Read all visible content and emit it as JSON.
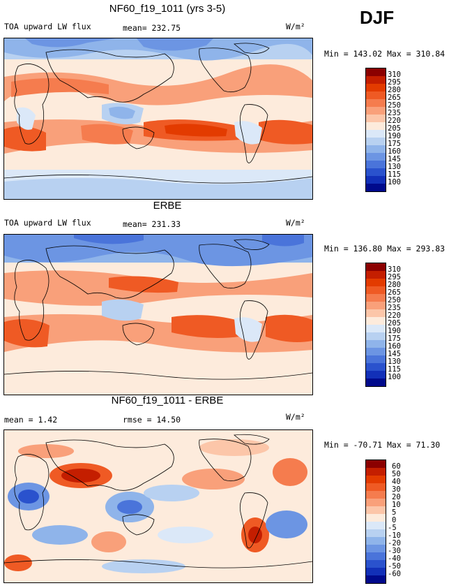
{
  "season": "DJF",
  "units": "W/m²",
  "panels": [
    {
      "title": "NF60_f19_1011 (yrs 3-5)",
      "variable": "TOA upward LW flux",
      "stat_text": "mean= 232.75",
      "minmax": "Min = 143.02 Max = 310.84",
      "colorbar": {
        "labels": [
          "310",
          "295",
          "280",
          "265",
          "250",
          "235",
          "220",
          "205",
          "190",
          "175",
          "160",
          "145",
          "130",
          "115",
          "100"
        ],
        "colors": [
          "#8b0000",
          "#c41e00",
          "#e33b00",
          "#ef5a24",
          "#f57c4e",
          "#f9a07a",
          "#fcc6a9",
          "#fdebdc",
          "#dbe8f8",
          "#b8d1f1",
          "#8fb4ea",
          "#6c95e3",
          "#4a74da",
          "#2a52cd",
          "#1230b8",
          "#000a8c"
        ]
      }
    },
    {
      "title": "ERBE",
      "variable": "TOA upward LW flux",
      "stat_text": "mean= 231.33",
      "minmax": "Min = 136.80 Max = 293.83",
      "colorbar": {
        "labels": [
          "310",
          "295",
          "280",
          "265",
          "250",
          "235",
          "220",
          "205",
          "190",
          "175",
          "160",
          "145",
          "130",
          "115",
          "100"
        ],
        "colors": [
          "#8b0000",
          "#c41e00",
          "#e33b00",
          "#ef5a24",
          "#f57c4e",
          "#f9a07a",
          "#fcc6a9",
          "#fdebdc",
          "#dbe8f8",
          "#b8d1f1",
          "#8fb4ea",
          "#6c95e3",
          "#4a74da",
          "#2a52cd",
          "#1230b8",
          "#000a8c"
        ]
      }
    },
    {
      "title": "NF60_f19_1011 - ERBE",
      "mean_text": "mean =  1.42",
      "rmse_text": "rmse =  14.50",
      "minmax": "Min = -70.71 Max =  71.30",
      "colorbar": {
        "labels": [
          "60",
          "50",
          "40",
          "30",
          "20",
          "10",
          "5",
          "0",
          "-5",
          "-10",
          "-20",
          "-30",
          "-40",
          "-50",
          "-60"
        ],
        "colors": [
          "#8b0000",
          "#c41e00",
          "#e33b00",
          "#ef5a24",
          "#f57c4e",
          "#f9a07a",
          "#fcc6a9",
          "#fdebdc",
          "#dbe8f8",
          "#b8d1f1",
          "#8fb4ea",
          "#6c95e3",
          "#4a74da",
          "#2a52cd",
          "#1230b8",
          "#000a8c"
        ]
      }
    }
  ]
}
